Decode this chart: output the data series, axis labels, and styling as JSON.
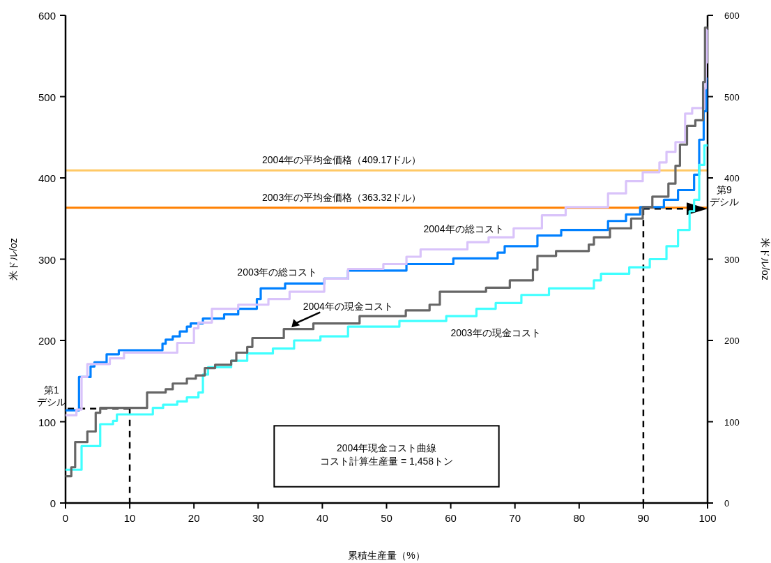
{
  "chart_data": {
    "type": "step",
    "xlabel": "累積生産量（%）",
    "ylabel": "米ドル/oz",
    "y2label": "米ドル/oz",
    "xlim": [
      0,
      100
    ],
    "xticks": [
      0,
      10,
      20,
      30,
      40,
      50,
      60,
      70,
      80,
      90,
      100
    ],
    "ylim": [
      0,
      600
    ],
    "yticks": [
      0,
      100,
      200,
      300,
      400,
      500,
      600
    ],
    "y2lim": [
      0,
      600
    ],
    "y2ticks": [
      0,
      100,
      200,
      300,
      400,
      500,
      600
    ],
    "series": [
      {
        "name": "2003年の総コスト",
        "color": "#0080ff",
        "x": [
          0,
          2.1,
          3.9,
          4.5,
          6.4,
          8.3,
          15.1,
          15.6,
          16.7,
          17.8,
          18.9,
          19.5,
          21.4,
          24.7,
          26.9,
          29.8,
          30.4,
          34.2,
          40.3,
          44,
          53.1,
          60.4,
          67.3,
          68.4,
          73.5,
          77.2,
          84.5,
          87.3,
          89.5,
          93.2,
          95.4,
          97.9,
          98.7,
          99.4,
          99.8,
          100
        ],
        "values": [
          114,
          155,
          168,
          173,
          183,
          188,
          196,
          201,
          205,
          211,
          217,
          221,
          227,
          232,
          239,
          251,
          264,
          270,
          276,
          286,
          294,
          301,
          308,
          316,
          329,
          336,
          347,
          355,
          364,
          373,
          385,
          404,
          447,
          482,
          522,
          522
        ]
      },
      {
        "name": "2004年の総コスト",
        "color": "#d9c3fa",
        "x": [
          0,
          1.7,
          2.5,
          3.4,
          6.9,
          9.1,
          17.4,
          20,
          20.7,
          22.8,
          26.9,
          31.6,
          34.9,
          40.3,
          44,
          49.5,
          53.1,
          55.3,
          62.6,
          65.9,
          69.8,
          74.2,
          77.9,
          84.5,
          87.3,
          89.9,
          92.5,
          93.6,
          95,
          96.5,
          97.6,
          99.5,
          99.7,
          99.9,
          100
        ],
        "values": [
          108,
          115,
          155,
          171,
          178,
          185,
          197,
          215,
          222,
          239,
          244,
          251,
          260,
          276,
          288,
          294,
          303,
          312,
          321,
          327,
          338,
          354,
          364,
          381,
          396,
          407,
          419,
          432,
          444,
          479,
          486,
          510,
          542,
          582,
          582
        ]
      },
      {
        "name": "2003年の現金コスト",
        "color": "#40ffff",
        "x": [
          0,
          2.5,
          5.4,
          7.4,
          8,
          13.6,
          15.2,
          17.4,
          18.9,
          20.7,
          21.4,
          22.2,
          25.8,
          28.3,
          32.3,
          35.6,
          39.7,
          44,
          52,
          59.3,
          64,
          67,
          71,
          75.3,
          82.3,
          83.4,
          87.8,
          91,
          93.6,
          95.4,
          97.2,
          97.9,
          98.7,
          99.5,
          100
        ],
        "values": [
          41,
          70,
          97,
          101,
          109,
          117,
          121,
          125,
          130,
          136,
          158,
          167,
          175,
          184,
          190,
          200,
          205,
          217,
          224,
          230,
          239,
          246,
          256,
          264,
          274,
          282,
          290,
          300,
          316,
          336,
          359,
          373,
          416,
          440,
          440
        ]
      },
      {
        "name": "2004年の現金コスト",
        "color": "#666666",
        "x": [
          0,
          0.9,
          1.5,
          3.4,
          4.7,
          5.4,
          12.7,
          15.6,
          16.7,
          18.9,
          20.3,
          21.7,
          23.3,
          25.8,
          26.6,
          28.3,
          29.1,
          34,
          38.6,
          45.8,
          53,
          56.7,
          58.3,
          65.5,
          69.2,
          72.8,
          73.5,
          76.4,
          81.5,
          82.3,
          84.8,
          88.1,
          89.9,
          91.4,
          93.9,
          95,
          95.7,
          96.8,
          98.1,
          99.3,
          99.6,
          100
        ],
        "values": [
          33,
          44,
          75,
          88,
          111,
          117,
          136,
          140,
          147,
          153,
          157,
          166,
          170,
          175,
          185,
          192,
          203,
          214,
          221,
          230,
          237,
          244,
          260,
          265,
          274,
          287,
          304,
          310,
          318,
          327,
          338,
          350,
          364,
          377,
          393,
          415,
          441,
          464,
          471,
          518,
          585,
          585
        ]
      }
    ],
    "ref_lines": [
      {
        "axis": "y",
        "value": 409.17,
        "label": "2004年の平均金価格（409.17ドル）",
        "color": "#ffc966"
      },
      {
        "axis": "y",
        "value": 363.32,
        "label": "2003年の平均金価格（363.32ドル）",
        "color": "#ff8000"
      },
      {
        "axis": "x",
        "value": 10,
        "color": "#000000",
        "line_style": "dashed"
      },
      {
        "axis": "x",
        "value": 90,
        "color": "#000000",
        "line_style": "dashed"
      }
    ],
    "annotations": [
      {
        "text": "第1 デシル",
        "x": 0,
        "y": 116
      },
      {
        "text": "第9 デシル",
        "x": 100,
        "y": 362
      },
      "2004年現金コスト曲線",
      "コスト計算生産量 = 1,458トン"
    ],
    "legend": false,
    "grid": false
  }
}
